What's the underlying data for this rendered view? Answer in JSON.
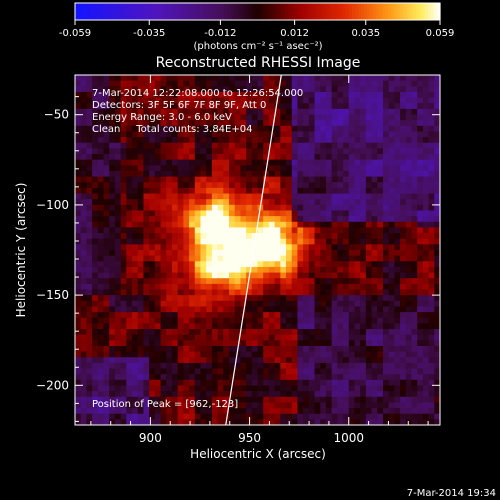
{
  "chart_data": {
    "type": "heatmap",
    "title": "Reconstructed RHESSI Image",
    "xlabel": "Heliocentric X (arcsec)",
    "ylabel": "Heliocentric Y (arcsec)",
    "xlim": [
      862,
      1046
    ],
    "ylim": [
      -222,
      -28
    ],
    "xticks": [
      900,
      950,
      1000
    ],
    "yticks": [
      -50,
      -100,
      -150,
      -200
    ],
    "colorbar": {
      "min": -0.059,
      "max": 0.059,
      "ticks": [
        "-0.059",
        "-0.035",
        "-0.012",
        "0.012",
        "0.035",
        "0.059"
      ],
      "units": "(photons cm⁻² s⁻¹ asec⁻²)"
    },
    "info_lines": [
      "7-Mar-2014 12:22:08.000 to 12:26:54.000",
      "Detectors: 3F 5F 6F 7F 8F 9F, Att 0",
      "Energy Range: 3.0 - 6.0 keV",
      "Clean     Total counts: 3.84E+04"
    ],
    "peak_label": "Position of Peak = [962,-123]",
    "peak": {
      "x": 962,
      "y": -123,
      "value": 0.059
    },
    "sources": [
      {
        "x": 930,
        "y": -108,
        "sigma": 9,
        "amplitude": 0.042
      },
      {
        "x": 960,
        "y": -123,
        "sigma": 11,
        "amplitude": 0.055
      },
      {
        "x": 933,
        "y": -132,
        "sigma": 12,
        "amplitude": 0.045
      },
      {
        "x": 947,
        "y": -118,
        "sigma": 22,
        "amplitude": 0.022
      }
    ],
    "limb": [
      [
        966,
        -28
      ],
      [
        938,
        -222
      ]
    ]
  },
  "footer": {
    "timestamp": "7-Mar-2014 19:34"
  }
}
